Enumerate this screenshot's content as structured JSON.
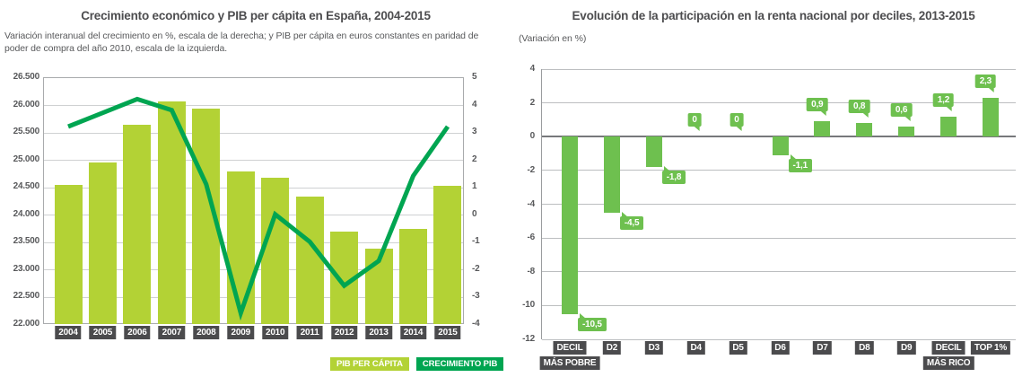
{
  "left_chart": {
    "title": "Crecimiento económico y PIB per cápita en España, 2004-2015",
    "subtitle": "Variación interanual del crecimiento en %, escala de la derecha; y PIB per cápita en euros constantes en paridad de poder de compra del año 2010, escala de la izquierda.",
    "legend": [
      {
        "label": "PIB PER CÁPITA",
        "color": "#b3d235"
      },
      {
        "label": "CRECIMIENTO PIB",
        "color": "#00a551"
      }
    ]
  },
  "right_chart": {
    "title": "Evolución de la participación en la renta nacional por deciles, 2013-2015",
    "subtitle": "(Variación en %)"
  },
  "colors": {
    "bar_light_green": "#b3d235",
    "line_green": "#00a551",
    "bar_mid_green": "#6ec04f",
    "label_box_dark": "#4b4b4d",
    "grid_gray": "#cfd1d2",
    "zero_line_gray": "#77787b",
    "text_dark": "#4d4d4f",
    "text_gray": "#58595b"
  },
  "chart_data": [
    {
      "type": "bar",
      "subtype": "combo-bar-line",
      "title": "Crecimiento económico y PIB per cápita en España, 2004-2015",
      "categories": [
        "2004",
        "2005",
        "2006",
        "2007",
        "2008",
        "2009",
        "2010",
        "2011",
        "2012",
        "2013",
        "2014",
        "2015"
      ],
      "series": [
        {
          "name": "PIB PER CÁPITA",
          "type": "bar",
          "axis": "left",
          "color": "#b3d235",
          "values": [
            24530,
            24950,
            25630,
            26060,
            25930,
            24790,
            24670,
            24330,
            23680,
            23370,
            23740,
            24520
          ]
        },
        {
          "name": "CRECIMIENTO PIB",
          "type": "line",
          "axis": "right",
          "color": "#00a551",
          "values": [
            3.2,
            3.7,
            4.2,
            3.8,
            1.1,
            -3.6,
            0.0,
            -1.0,
            -2.6,
            -1.7,
            1.4,
            3.2
          ]
        }
      ],
      "left_axis": {
        "min": 22000,
        "max": 26500,
        "step": 500,
        "tick_labels": [
          "26.500",
          "26.000",
          "25.500",
          "25.000",
          "24.500",
          "24.000",
          "23.500",
          "23.000",
          "22.500",
          "22.000"
        ]
      },
      "right_axis": {
        "min": -4,
        "max": 5,
        "step": 1,
        "tick_labels": [
          "5",
          "4",
          "3",
          "2",
          "1",
          "0",
          "-1",
          "-2",
          "-3",
          "-4"
        ]
      },
      "grid": true,
      "legend_position": "bottom-right"
    },
    {
      "type": "bar",
      "title": "Evolución de la participación en la renta nacional por deciles, 2013-2015",
      "ylabel": "(Variación en %)",
      "categories": [
        {
          "line1": "DECIL",
          "line2": "MÁS POBRE"
        },
        {
          "line1": "D2"
        },
        {
          "line1": "D3"
        },
        {
          "line1": "D4"
        },
        {
          "line1": "D5"
        },
        {
          "line1": "D6"
        },
        {
          "line1": "D7"
        },
        {
          "line1": "D8"
        },
        {
          "line1": "D9"
        },
        {
          "line1": "DECIL",
          "line2": "MÁS RICO"
        },
        {
          "line1": "TOP 1%"
        }
      ],
      "values": [
        -10.5,
        -4.5,
        -1.8,
        0,
        0,
        -1.1,
        0.9,
        0.8,
        0.6,
        1.2,
        2.3
      ],
      "value_labels": [
        "-10,5",
        "-4,5",
        "-1,8",
        "0",
        "0",
        "-1,1",
        "0,9",
        "0,8",
        "0,6",
        "1,2",
        "2,3"
      ],
      "ylim": [
        -12,
        4
      ],
      "step": 2,
      "tick_labels": [
        "4",
        "2",
        "0",
        "-2",
        "-4",
        "-6",
        "-8",
        "-10",
        "-12"
      ],
      "grid": true
    }
  ]
}
